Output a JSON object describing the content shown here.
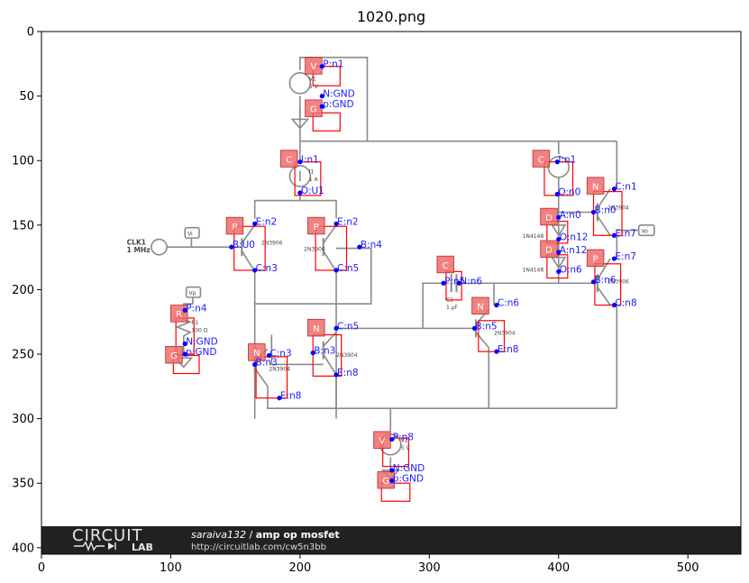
{
  "title": "1020.png",
  "axes": {
    "x_ticks": [
      "0",
      "100",
      "200",
      "300",
      "400",
      "500"
    ],
    "y_ticks": [
      "0",
      "50",
      "100",
      "150",
      "200",
      "250",
      "300",
      "350",
      "400"
    ]
  },
  "banner": {
    "logo_top": "CIRCUIT",
    "logo_bottom": "LAB",
    "author": "saraiva132",
    "project": "amp op mosfet",
    "url": "http://circuitlab.com/cw5n3bb"
  },
  "schematic_labels": {
    "clk_name": "CLK1",
    "clk_freq": "1 MHz",
    "vi_probe": "Vi",
    "vo_probe": "Vo",
    "vp_probe": "Vp",
    "v1_name": "V1",
    "v1_val": "5 V",
    "i1_name": "I1",
    "i1_val": "1 A",
    "q_pnp": "2N3906",
    "q_npn": "2N3904",
    "r1_name": "R1",
    "r1_val": "100 Ω",
    "c1_name": "C1",
    "c1_val": "1 µF",
    "d_part": "1N4148",
    "v2_name": "V2",
    "v2_val": "5 V"
  },
  "annotations": {
    "tags": [
      {
        "id": "v1",
        "letter": "V"
      },
      {
        "id": "g1",
        "letter": "G"
      },
      {
        "id": "c_i1",
        "letter": "C"
      },
      {
        "id": "p_q5",
        "letter": "P"
      },
      {
        "id": "p_q4",
        "letter": "P"
      },
      {
        "id": "r1",
        "letter": "R"
      },
      {
        "id": "g2",
        "letter": "G"
      },
      {
        "id": "n_q2",
        "letter": "N"
      },
      {
        "id": "n_q3",
        "letter": "N"
      },
      {
        "id": "v2",
        "letter": "V"
      },
      {
        "id": "g3",
        "letter": "G"
      },
      {
        "id": "c_c1",
        "letter": "C"
      },
      {
        "id": "n_q9",
        "letter": "N"
      },
      {
        "id": "c_i2",
        "letter": "C"
      },
      {
        "id": "n_q10",
        "letter": "N"
      },
      {
        "id": "d1",
        "letter": "D"
      },
      {
        "id": "d2",
        "letter": "D"
      },
      {
        "id": "p_q11",
        "letter": "P"
      }
    ],
    "pins": [
      {
        "id": "p1",
        "label": "P:n1"
      },
      {
        "id": "p2",
        "label": "N:GND"
      },
      {
        "id": "p3",
        "label": "p:GND"
      },
      {
        "id": "p4",
        "label": "I:n1"
      },
      {
        "id": "p5",
        "label": "O:U1"
      },
      {
        "id": "p6",
        "label": "E:n2"
      },
      {
        "id": "p7",
        "label": "B:U0"
      },
      {
        "id": "p8",
        "label": "C:n3"
      },
      {
        "id": "p9",
        "label": "E:n2"
      },
      {
        "id": "p10",
        "label": "B:n4"
      },
      {
        "id": "p11",
        "label": "C:n5"
      },
      {
        "id": "p12",
        "label": "P:n4"
      },
      {
        "id": "p13",
        "label": "N:GND"
      },
      {
        "id": "p14",
        "label": "p:GND"
      },
      {
        "id": "p15",
        "label": "C:n3"
      },
      {
        "id": "p16",
        "label": "B:n3"
      },
      {
        "id": "p17",
        "label": "E:n8"
      },
      {
        "id": "p18",
        "label": "C:n5"
      },
      {
        "id": "p19",
        "label": "B:n3"
      },
      {
        "id": "p20",
        "label": "E:n8"
      },
      {
        "id": "p21",
        "label": "P:n8"
      },
      {
        "id": "p22",
        "label": "N:GND"
      },
      {
        "id": "p23",
        "label": "p:GND"
      },
      {
        "id": "p24",
        "label": "P:n5"
      },
      {
        "id": "p25",
        "label": "N:n6"
      },
      {
        "id": "p26",
        "label": "C:n6"
      },
      {
        "id": "p27",
        "label": "B:n5"
      },
      {
        "id": "p28",
        "label": "E:n8"
      },
      {
        "id": "p29",
        "label": "I:n1"
      },
      {
        "id": "p30",
        "label": "O:n0"
      },
      {
        "id": "p31",
        "label": "C:n1"
      },
      {
        "id": "p32",
        "label": "B:n0"
      },
      {
        "id": "p33",
        "label": "E:n7"
      },
      {
        "id": "p34",
        "label": "A:n0"
      },
      {
        "id": "p35",
        "label": "O:n12"
      },
      {
        "id": "p36",
        "label": "A:n12"
      },
      {
        "id": "p37",
        "label": "O:n6"
      },
      {
        "id": "p38",
        "label": "E:n7"
      },
      {
        "id": "p39",
        "label": "B:n6"
      },
      {
        "id": "p40",
        "label": "C:n8"
      }
    ]
  },
  "colors": {
    "tag_fill": "#f06b6b",
    "box_stroke": "#ff0000",
    "pin_text": "#1a1aff",
    "pin_dot": "#0000ff",
    "wire": "#8a8a8a",
    "banner_bg": "#222222"
  }
}
